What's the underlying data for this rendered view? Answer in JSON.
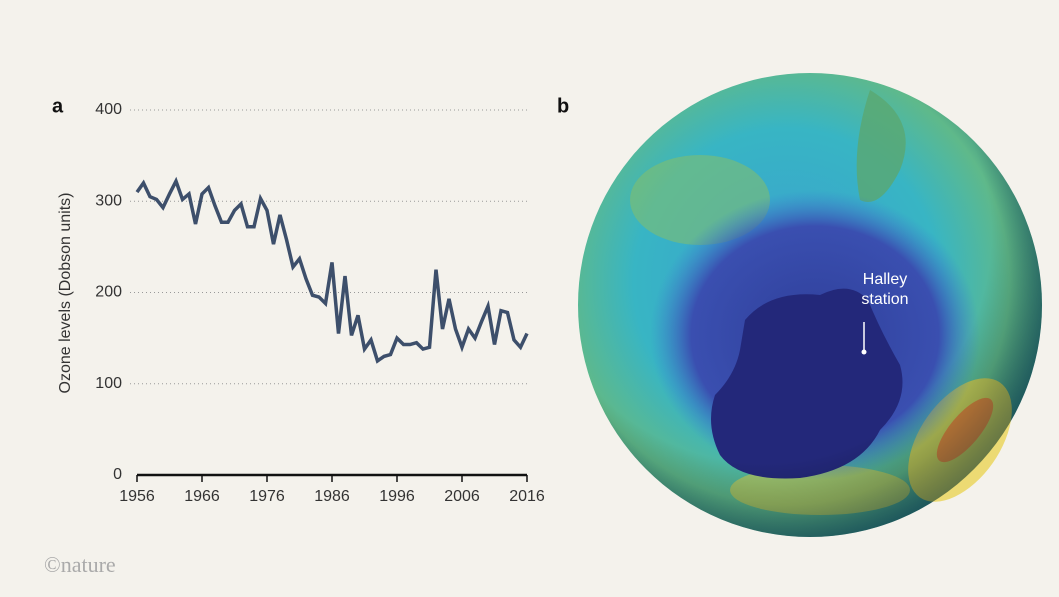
{
  "chart_data": {
    "type": "line",
    "panel_label": "a",
    "ylabel": "Ozone levels (Dobson units)",
    "x": [
      1956,
      1957,
      1958,
      1959,
      1960,
      1961,
      1962,
      1963,
      1964,
      1965,
      1966,
      1967,
      1968,
      1969,
      1970,
      1971,
      1972,
      1973,
      1974,
      1975,
      1976,
      1977,
      1978,
      1979,
      1980,
      1981,
      1982,
      1983,
      1984,
      1985,
      1986,
      1987,
      1988,
      1989,
      1990,
      1991,
      1992,
      1993,
      1994,
      1995,
      1996,
      1997,
      1998,
      1999,
      2000,
      2001,
      2002,
      2003,
      2004,
      2005,
      2006,
      2007,
      2008,
      2009,
      2010,
      2011,
      2012,
      2013,
      2014,
      2015,
      2016
    ],
    "series": [
      {
        "color": "#3d4f6b",
        "values": [
          310,
          320,
          305,
          302,
          293,
          308,
          322,
          302,
          308,
          275,
          308,
          315,
          295,
          277,
          277,
          290,
          297,
          272,
          272,
          303,
          290,
          253,
          285,
          258,
          228,
          237,
          215,
          197,
          195,
          188,
          233,
          155,
          218,
          153,
          175,
          138,
          148,
          125,
          130,
          132,
          150,
          143,
          143,
          145,
          138,
          140,
          225,
          160,
          193,
          160,
          140,
          160,
          150,
          168,
          185,
          143,
          180,
          178,
          148,
          140,
          155
        ]
      }
    ],
    "xlim": [
      1956,
      2016
    ],
    "xticks": [
      1956,
      1966,
      1976,
      1986,
      1996,
      2006,
      2016
    ],
    "ylim": [
      0,
      400
    ],
    "yticks": [
      0,
      100,
      200,
      300,
      400
    ],
    "grid": true
  },
  "panel_b": {
    "label": "b",
    "annotation": "Halley station"
  },
  "credit": "©nature"
}
